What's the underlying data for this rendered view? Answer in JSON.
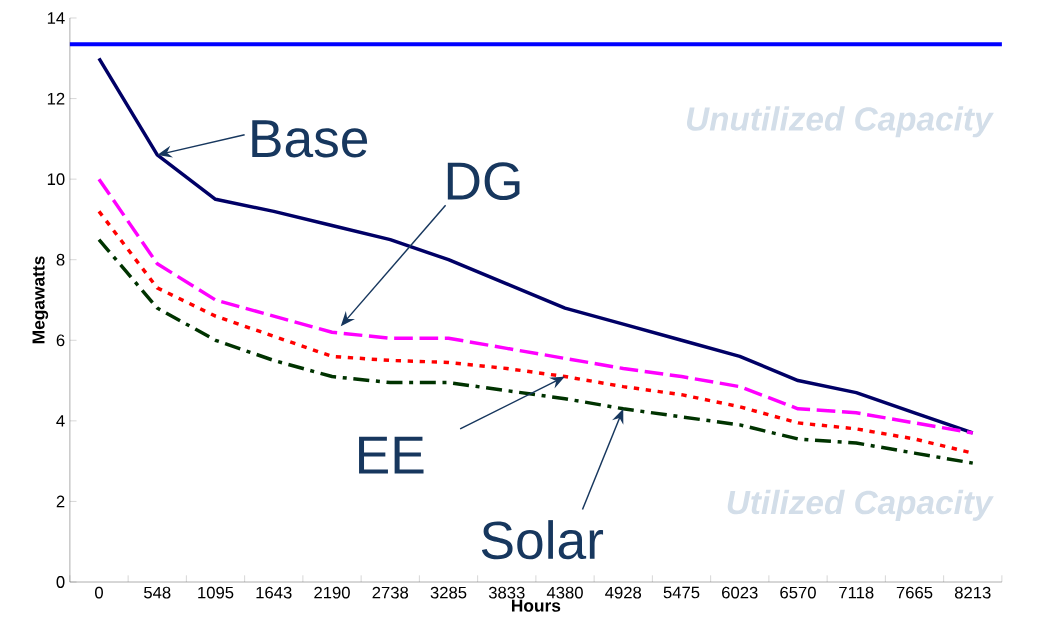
{
  "chart_data": {
    "type": "line",
    "xlabel": "Hours",
    "ylabel": "Megawatts",
    "categories": [
      "0",
      "548",
      "1095",
      "1643",
      "2190",
      "2738",
      "3285",
      "3833",
      "4380",
      "4928",
      "5475",
      "6023",
      "6570",
      "7118",
      "7665",
      "8213"
    ],
    "series": [
      {
        "color": "#000066",
        "line_style": "solid",
        "values": [
          13.0,
          10.6,
          9.5,
          9.2,
          8.85,
          8.5,
          8.0,
          7.4,
          6.8,
          6.4,
          6.0,
          5.6,
          5.0,
          4.7,
          4.2,
          3.7
        ]
      },
      {
        "color": "#ff00ff",
        "line_style": "dashed",
        "values": [
          10.0,
          7.9,
          7.0,
          6.6,
          6.2,
          6.05,
          6.05,
          5.8,
          5.55,
          5.3,
          5.1,
          4.85,
          4.3,
          4.2,
          3.95,
          3.7
        ]
      },
      {
        "color": "#ff0000",
        "line_style": "dotted",
        "values": [
          9.2,
          7.3,
          6.6,
          6.1,
          5.6,
          5.5,
          5.45,
          5.3,
          5.1,
          4.85,
          4.65,
          4.35,
          3.95,
          3.8,
          3.55,
          3.2
        ]
      },
      {
        "color": "#003300",
        "line_style": "dashdot",
        "values": [
          8.5,
          6.8,
          6.0,
          5.5,
          5.1,
          4.95,
          4.95,
          4.75,
          4.55,
          4.3,
          4.1,
          3.9,
          3.55,
          3.45,
          3.2,
          2.95
        ]
      }
    ],
    "ref_lines": [
      {
        "axis": "y",
        "value": 13.35,
        "color": "#0000ff"
      }
    ],
    "annotations": [
      "Unutilized Capacity",
      "Utilized Capacity",
      {
        "text": "Base",
        "x": "548",
        "y": 10.6
      },
      "DG",
      {
        "text": "EE",
        "x": "4380",
        "y": 5.1
      },
      {
        "text": "Solar",
        "x": "4928",
        "y": 4.3
      }
    ],
    "ylim": [
      0,
      14
    ],
    "yticks": [
      0,
      2,
      4,
      6,
      8,
      10,
      12,
      14
    ],
    "grid": false,
    "legend": false,
    "marker": "none"
  }
}
